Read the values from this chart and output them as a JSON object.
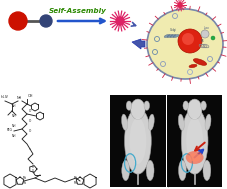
{
  "background_color": "#ffffff",
  "self_assembly_text": "Self-Assembly",
  "self_assembly_color": "#2a8800",
  "arrow_color": "#2255cc",
  "red_ball_color": "#cc1100",
  "blue_ball_color": "#334477",
  "cell_fill": "#f0ebb0",
  "cell_border": "#8899bb",
  "probe_color": "#222222",
  "mouse_bg": "#0a0a0a",
  "mouse_body": "#c8c8c8"
}
